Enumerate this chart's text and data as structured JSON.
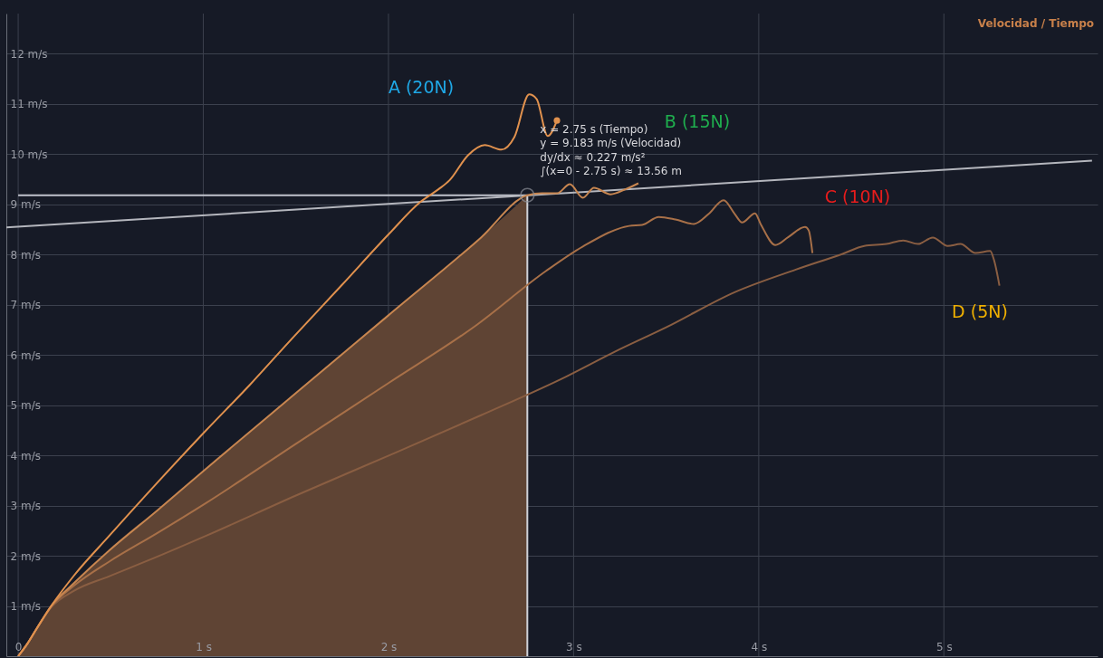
{
  "chart_data": {
    "type": "line",
    "title": "Velocidad / Tiempo",
    "xlim": [
      -0.064,
      5.83
    ],
    "ylim": [
      0,
      12.8
    ],
    "xticks": [
      {
        "value": 0,
        "label": "0"
      },
      {
        "value": 1,
        "label": "1 s"
      },
      {
        "value": 2,
        "label": "2 s"
      },
      {
        "value": 3,
        "label": "3 s"
      },
      {
        "value": 4,
        "label": "4 s"
      },
      {
        "value": 5,
        "label": "5 s"
      }
    ],
    "yticks": [
      {
        "value": 1,
        "label": "1 m/s"
      },
      {
        "value": 2,
        "label": "2 m/s"
      },
      {
        "value": 3,
        "label": "3 m/s"
      },
      {
        "value": 4,
        "label": "4 m/s"
      },
      {
        "value": 5,
        "label": "5 m/s"
      },
      {
        "value": 6,
        "label": "6 m/s"
      },
      {
        "value": 7,
        "label": "7 m/s"
      },
      {
        "value": 8,
        "label": "8 m/s"
      },
      {
        "value": 9,
        "label": "9 m/s"
      },
      {
        "value": 10,
        "label": "10 m/s"
      },
      {
        "value": 11,
        "label": "11 m/s"
      },
      {
        "value": 12,
        "label": "12 m/s"
      }
    ],
    "grid": true,
    "marker": "none",
    "line_style": "solid",
    "series": [
      {
        "type": "area",
        "color": "#5f4434",
        "x": [
          0,
          0.05,
          0.1,
          0.18,
          0.3,
          0.49,
          0.75,
          1.01,
          1.5,
          2.0,
          2.5,
          2.75
        ],
        "values": [
          0,
          0.25,
          0.55,
          1.01,
          1.45,
          2.1,
          2.9,
          3.72,
          5.24,
          6.79,
          8.34,
          9.18
        ]
      },
      {
        "color": "#d0d2d8",
        "x": [
          2.75,
          2.75
        ],
        "values": [
          0,
          9.18
        ]
      },
      {
        "color": "#c0c3cc",
        "x": [
          0,
          2.75
        ],
        "values": [
          9.18,
          9.18
        ]
      },
      {
        "color": "#b4b6bd",
        "x": [
          -0.064,
          5.8
        ],
        "values": [
          8.54,
          9.87
        ]
      },
      {
        "color": "#8a5e42",
        "x": [
          0,
          0.05,
          0.1,
          0.18,
          0.3,
          0.49,
          0.75,
          1.01,
          1.5,
          2.01,
          2.5,
          2.96,
          3.22,
          3.5,
          3.87,
          4.2,
          4.45,
          4.57,
          4.69,
          4.78,
          4.86,
          4.94,
          5.02,
          5.09,
          5.17,
          5.25,
          5.27,
          5.3
        ],
        "values": [
          0,
          0.25,
          0.55,
          0.98,
          1.3,
          1.59,
          1.98,
          2.39,
          3.2,
          4.01,
          4.8,
          5.57,
          6.06,
          6.55,
          7.25,
          7.7,
          8.01,
          8.17,
          8.21,
          8.28,
          8.21,
          8.34,
          8.17,
          8.21,
          8.03,
          8.07,
          7.9,
          7.38
        ]
      },
      {
        "color": "#a87048",
        "x": [
          0,
          0.05,
          0.1,
          0.18,
          0.3,
          0.49,
          0.75,
          1.01,
          1.5,
          2.0,
          2.47,
          2.85,
          3.05,
          3.3,
          3.37,
          3.46,
          3.55,
          3.65,
          3.73,
          3.81,
          3.87,
          3.91,
          3.98,
          4.01,
          4.09,
          4.16,
          4.25,
          4.27,
          4.29
        ],
        "values": [
          0,
          0.25,
          0.55,
          1.0,
          1.4,
          1.88,
          2.45,
          3.04,
          4.23,
          5.44,
          6.58,
          7.67,
          8.16,
          8.57,
          8.59,
          8.75,
          8.7,
          8.61,
          8.81,
          9.08,
          8.81,
          8.64,
          8.82,
          8.61,
          8.19,
          8.35,
          8.55,
          8.48,
          8.03
        ]
      },
      {
        "color": "#c88650",
        "x": [
          0,
          0.05,
          0.1,
          0.18,
          0.3,
          0.49,
          0.75,
          1.01,
          1.5,
          2.0,
          2.5,
          2.75,
          2.83,
          2.91,
          2.98,
          3.05,
          3.11,
          3.2,
          3.28,
          3.35
        ],
        "values": [
          0,
          0.25,
          0.55,
          1.01,
          1.45,
          2.1,
          2.9,
          3.72,
          5.24,
          6.79,
          8.34,
          9.18,
          9.22,
          9.22,
          9.4,
          9.13,
          9.33,
          9.2,
          9.3,
          9.42
        ]
      },
      {
        "color": "#e0914e",
        "x": [
          0,
          0.05,
          0.1,
          0.18,
          0.3,
          0.49,
          0.75,
          1.01,
          1.25,
          1.48,
          1.75,
          2.0,
          2.17,
          2.27,
          2.33,
          2.43,
          2.52,
          2.61,
          2.68,
          2.76,
          2.8,
          2.86,
          2.91
        ],
        "values": [
          0,
          0.25,
          0.55,
          1.01,
          1.6,
          2.39,
          3.45,
          4.48,
          5.4,
          6.33,
          7.4,
          8.4,
          9.04,
          9.3,
          9.48,
          9.98,
          10.18,
          10.09,
          10.34,
          11.19,
          11.1,
          10.36,
          10.67
        ]
      },
      {
        "type": "scatter",
        "color": "#e0914e",
        "x": [
          2.91
        ],
        "values": [
          10.67
        ]
      }
    ],
    "annotations": [
      "A (20N)",
      "B (15N)",
      "C (10N)",
      "D (5N)",
      {
        "text": "x = 2.75 s (Tiempo)\ny = 9.183 m/s (Velocidad)\ndy/dx ≈ 0.227 m/s²\n∫(x=0 - 2.75 s) ≈ 13.56 m",
        "x": 2.75,
        "y": 9.183
      }
    ]
  }
}
